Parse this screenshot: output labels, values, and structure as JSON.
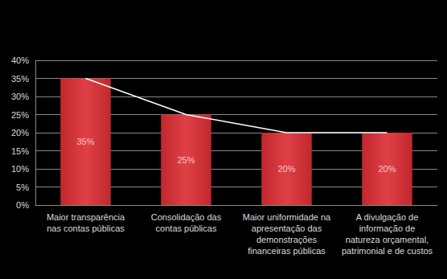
{
  "chart_data": {
    "type": "bar",
    "categories": [
      "Maior transparência\nnas contas públicas",
      "Consolidação das\ncontas públicas",
      "Maior uniformidade na\napresentação das\ndemonstrações\nfinanceiras públicas",
      "A divulgação de\ninformação de\nnatureza orçamental,\npatrimonial e de custos"
    ],
    "values": [
      35,
      25,
      20,
      20
    ],
    "value_labels": [
      "35%",
      "25%",
      "20%",
      "20%"
    ],
    "data_labels": true,
    "color": "#c0282d",
    "line_style": "solid",
    "ylim": [
      0,
      40
    ],
    "yticks": [
      {
        "value": 0,
        "label": "0%"
      },
      {
        "value": 5,
        "label": "5%"
      },
      {
        "value": 10,
        "label": "10%"
      },
      {
        "value": 15,
        "label": "15%"
      },
      {
        "value": 20,
        "label": "20%"
      },
      {
        "value": 25,
        "label": "25%"
      },
      {
        "value": 30,
        "label": "30%"
      },
      {
        "value": 35,
        "label": "35%"
      },
      {
        "value": 40,
        "label": "40%"
      }
    ],
    "grid": true
  }
}
